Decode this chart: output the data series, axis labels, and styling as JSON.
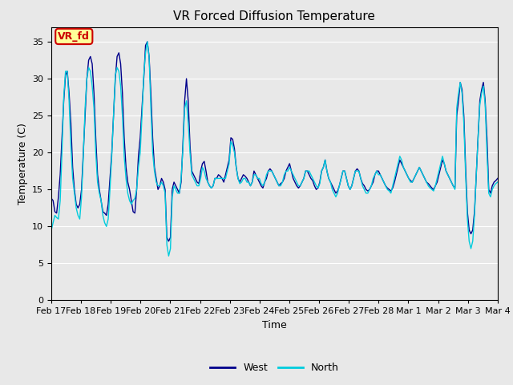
{
  "title": "VR Forced Diffusion Temperature",
  "xlabel": "Time",
  "ylabel": "Temperature (C)",
  "ylim": [
    0,
    37
  ],
  "yticks": [
    0,
    5,
    10,
    15,
    20,
    25,
    30,
    35
  ],
  "x_tick_labels": [
    "Feb 17",
    "Feb 18",
    "Feb 19",
    "Feb 20",
    "Feb 21",
    "Feb 22",
    "Feb 23",
    "Feb 24",
    "Feb 25",
    "Feb 26",
    "Feb 27",
    "Feb 28",
    "Mar 1",
    "Mar 2",
    "Mar 3",
    "Mar 4"
  ],
  "west_color": "#00008B",
  "north_color": "#00CCDD",
  "bg_color": "#E8E8E8",
  "plot_bg_color": "#E8E8E8",
  "legend_label_west": "West",
  "legend_label_north": "North",
  "annotation_text": "VR_fd",
  "annotation_bg": "#FFFF99",
  "annotation_border": "#CC0000",
  "title_fontsize": 11,
  "axis_label_fontsize": 9,
  "tick_fontsize": 8,
  "west_data": [
    13.8,
    13.5,
    12.0,
    11.8,
    14.0,
    17.0,
    22.0,
    27.0,
    30.5,
    31.0,
    28.0,
    24.0,
    18.0,
    15.0,
    13.0,
    12.5,
    13.0,
    15.0,
    20.0,
    25.0,
    30.0,
    32.5,
    33.0,
    32.0,
    28.0,
    22.0,
    17.0,
    15.0,
    13.5,
    12.0,
    11.8,
    11.5,
    13.0,
    16.5,
    20.0,
    25.0,
    30.0,
    33.0,
    33.5,
    32.0,
    28.0,
    22.0,
    18.0,
    16.0,
    15.0,
    13.5,
    12.0,
    11.8,
    15.0,
    19.5,
    22.0,
    26.0,
    30.0,
    34.5,
    35.0,
    33.0,
    28.0,
    22.0,
    18.0,
    16.5,
    15.0,
    15.5,
    16.5,
    16.0,
    15.0,
    8.5,
    8.0,
    8.5,
    15.0,
    16.0,
    15.5,
    15.0,
    14.5,
    16.0,
    21.0,
    27.0,
    30.0,
    27.0,
    21.0,
    17.5,
    17.0,
    16.5,
    16.0,
    15.8,
    17.5,
    18.5,
    18.8,
    17.5,
    16.0,
    15.5,
    15.2,
    15.5,
    16.5,
    16.5,
    17.0,
    16.8,
    16.5,
    16.0,
    17.0,
    18.0,
    19.0,
    22.0,
    21.8,
    20.5,
    18.0,
    16.5,
    16.0,
    16.5,
    17.0,
    16.8,
    16.5,
    16.0,
    15.5,
    16.0,
    17.5,
    17.0,
    16.5,
    16.0,
    15.5,
    15.2,
    16.0,
    16.5,
    17.5,
    17.8,
    17.5,
    17.0,
    16.5,
    16.0,
    15.5,
    15.8,
    16.0,
    16.5,
    17.5,
    18.0,
    18.5,
    17.5,
    16.5,
    16.0,
    15.5,
    15.2,
    15.5,
    16.0,
    16.5,
    17.5,
    17.5,
    17.0,
    16.5,
    16.2,
    15.5,
    15.0,
    15.2,
    16.0,
    17.5,
    18.0,
    19.0,
    17.5,
    16.5,
    16.0,
    15.5,
    15.0,
    14.5,
    14.8,
    15.5,
    16.5,
    17.5,
    17.5,
    16.5,
    15.5,
    15.0,
    15.5,
    16.5,
    17.5,
    17.8,
    17.5,
    16.5,
    15.8,
    15.5,
    15.0,
    14.8,
    15.0,
    15.5,
    16.0,
    17.0,
    17.5,
    17.5,
    17.0,
    16.5,
    16.0,
    15.5,
    15.2,
    15.0,
    14.8,
    15.2,
    16.0,
    17.0,
    18.0,
    19.0,
    18.5,
    18.0,
    17.5,
    17.0,
    16.5,
    16.2,
    16.0,
    16.5,
    17.0,
    17.5,
    18.0,
    17.5,
    17.0,
    16.5,
    16.0,
    15.8,
    15.5,
    15.2,
    15.0,
    15.5,
    16.0,
    17.0,
    18.0,
    19.0,
    18.5,
    17.5,
    17.0,
    16.5,
    16.0,
    15.5,
    15.2,
    25.0,
    27.0,
    29.5,
    28.5,
    25.0,
    18.0,
    12.0,
    9.5,
    9.0,
    9.5,
    12.0,
    17.0,
    22.0,
    27.0,
    28.5,
    29.5,
    27.0,
    22.0,
    15.0,
    14.5,
    15.5,
    16.0,
    16.2,
    16.5
  ],
  "north_data": [
    9.5,
    10.5,
    11.5,
    11.2,
    11.0,
    13.5,
    20.0,
    27.5,
    31.0,
    31.0,
    27.0,
    21.0,
    16.5,
    14.5,
    12.5,
    11.5,
    11.0,
    14.0,
    19.5,
    26.0,
    30.0,
    31.5,
    31.0,
    29.0,
    26.0,
    20.0,
    16.0,
    14.5,
    13.5,
    11.5,
    10.5,
    10.0,
    11.0,
    15.0,
    19.5,
    25.0,
    30.5,
    31.5,
    31.0,
    29.0,
    25.0,
    19.5,
    16.5,
    14.5,
    13.5,
    13.0,
    13.5,
    13.8,
    15.0,
    18.0,
    20.0,
    25.0,
    30.5,
    33.5,
    35.0,
    33.0,
    26.0,
    20.0,
    17.5,
    16.0,
    15.5,
    15.5,
    16.0,
    15.5,
    14.5,
    7.5,
    6.0,
    7.0,
    14.0,
    15.5,
    15.0,
    14.5,
    14.5,
    16.5,
    20.5,
    26.0,
    27.0,
    24.0,
    20.0,
    17.0,
    16.5,
    16.0,
    15.5,
    15.5,
    16.5,
    18.0,
    17.5,
    16.5,
    16.0,
    15.5,
    15.2,
    15.5,
    16.5,
    16.5,
    16.5,
    16.5,
    16.5,
    16.5,
    16.5,
    17.5,
    18.5,
    21.5,
    21.0,
    20.0,
    18.0,
    16.5,
    15.8,
    16.0,
    16.5,
    16.5,
    16.0,
    16.0,
    15.5,
    16.0,
    17.0,
    17.0,
    16.5,
    16.5,
    15.8,
    15.5,
    16.0,
    17.0,
    17.5,
    17.5,
    17.5,
    17.0,
    16.5,
    16.0,
    15.5,
    15.5,
    16.0,
    17.0,
    17.5,
    17.5,
    18.0,
    17.5,
    17.0,
    16.5,
    16.0,
    15.5,
    15.5,
    16.0,
    16.5,
    17.5,
    17.5,
    17.5,
    17.0,
    16.5,
    16.0,
    15.5,
    15.2,
    15.8,
    17.5,
    18.0,
    19.0,
    17.5,
    16.5,
    16.0,
    15.0,
    14.5,
    14.0,
    14.5,
    15.5,
    16.5,
    17.5,
    17.5,
    16.5,
    15.5,
    15.0,
    15.5,
    16.5,
    17.5,
    17.5,
    17.5,
    16.5,
    15.5,
    15.0,
    14.5,
    14.5,
    15.0,
    15.5,
    16.5,
    17.0,
    17.5,
    17.0,
    17.0,
    16.5,
    16.0,
    15.5,
    15.0,
    14.8,
    14.5,
    15.5,
    16.5,
    17.5,
    18.5,
    19.5,
    19.0,
    18.0,
    17.5,
    17.0,
    16.5,
    16.0,
    16.0,
    16.5,
    17.0,
    17.5,
    18.0,
    17.5,
    17.0,
    16.5,
    16.0,
    15.5,
    15.2,
    15.0,
    14.8,
    15.5,
    16.5,
    17.5,
    18.5,
    19.5,
    18.5,
    17.5,
    17.0,
    16.5,
    16.0,
    15.5,
    15.0,
    26.0,
    28.0,
    29.5,
    28.0,
    24.0,
    17.0,
    11.0,
    8.0,
    7.0,
    8.0,
    11.5,
    17.0,
    22.0,
    26.5,
    28.0,
    29.0,
    26.5,
    20.0,
    14.5,
    14.0,
    15.0,
    15.5,
    15.8,
    16.0
  ]
}
